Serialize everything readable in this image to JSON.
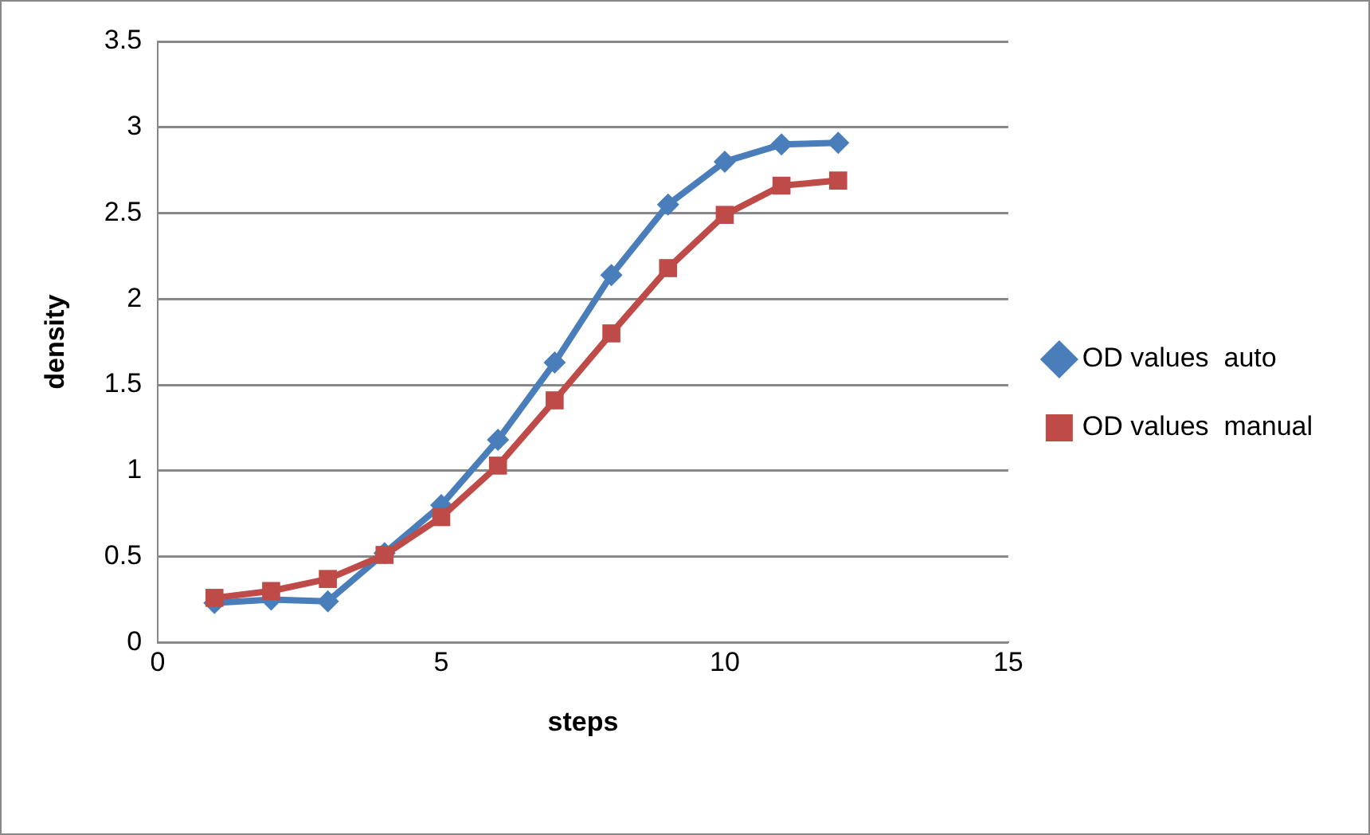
{
  "chart_data": {
    "type": "line",
    "xlabel": "steps",
    "ylabel": "density",
    "x": [
      1,
      2,
      3,
      4,
      5,
      6,
      7,
      8,
      9,
      10,
      11,
      12
    ],
    "series": [
      {
        "name": "OD values  auto",
        "color": "#4a7ebb",
        "marker": "diamond",
        "values": [
          0.23,
          0.25,
          0.24,
          0.52,
          0.8,
          1.18,
          1.63,
          2.14,
          2.55,
          2.8,
          2.9,
          2.91
        ]
      },
      {
        "name": "OD values  manual",
        "color": "#be4b48",
        "marker": "square",
        "values": [
          0.26,
          0.3,
          0.37,
          0.51,
          0.73,
          1.03,
          1.41,
          1.8,
          2.18,
          2.49,
          2.66,
          2.69
        ]
      }
    ],
    "xlim": [
      0,
      15
    ],
    "xticks": [
      0,
      5,
      10,
      15
    ],
    "ylim": [
      0,
      3.5
    ],
    "yticks": [
      0,
      0.5,
      1,
      1.5,
      2,
      2.5,
      3,
      3.5
    ],
    "grid": "y",
    "legend": "right",
    "line_style": "solid"
  }
}
